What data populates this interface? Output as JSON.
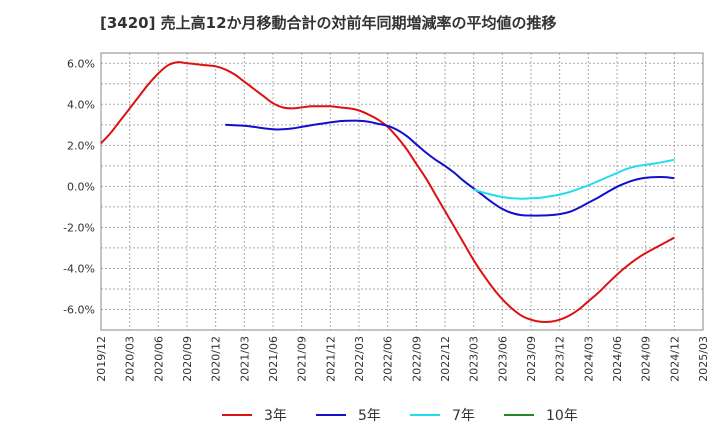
{
  "chart_data": {
    "type": "line",
    "title": "[3420]  売上高12か月移動合計の対前年同期増減率の平均値の推移",
    "xlabel": "",
    "ylabel": "",
    "x_ticks": [
      "2019/12",
      "2020/03",
      "2020/06",
      "2020/09",
      "2020/12",
      "2021/03",
      "2021/06",
      "2021/09",
      "2021/12",
      "2022/03",
      "2022/06",
      "2022/09",
      "2022/12",
      "2023/03",
      "2023/06",
      "2023/09",
      "2023/12",
      "2024/03",
      "2024/06",
      "2024/09",
      "2024/12",
      "2025/03"
    ],
    "y_ticks": [
      6,
      4,
      2,
      0,
      -2,
      -4,
      -6
    ],
    "y_tick_labels": [
      "6.0%",
      "4.0%",
      "2.0%",
      "0.0%",
      "-2.0%",
      "-4.0%",
      "-6.0%"
    ],
    "ylim": [
      -7,
      6.5
    ],
    "grid": true,
    "legend_position": "bottom",
    "series": [
      {
        "name": "3年",
        "color": "#dd1111",
        "x": [
          "2019/12",
          "2020/01",
          "2020/02",
          "2020/03",
          "2020/04",
          "2020/05",
          "2020/06",
          "2020/07",
          "2020/08",
          "2020/09",
          "2020/10",
          "2020/11",
          "2020/12",
          "2021/01",
          "2021/02",
          "2021/03",
          "2021/04",
          "2021/05",
          "2021/06",
          "2021/07",
          "2021/08",
          "2021/09",
          "2021/10",
          "2021/11",
          "2021/12",
          "2022/01",
          "2022/02",
          "2022/03",
          "2022/04",
          "2022/05",
          "2022/06",
          "2022/07",
          "2022/08",
          "2022/09",
          "2022/10",
          "2022/11",
          "2022/12",
          "2023/01",
          "2023/02",
          "2023/03",
          "2023/04",
          "2023/05",
          "2023/06",
          "2023/07",
          "2023/08",
          "2023/09",
          "2023/10",
          "2023/11",
          "2023/12",
          "2024/01",
          "2024/02",
          "2024/03",
          "2024/04",
          "2024/05",
          "2024/06",
          "2024/07",
          "2024/08",
          "2024/09",
          "2024/10",
          "2024/11",
          "2024/12"
        ],
        "values": [
          2.1,
          2.6,
          3.2,
          3.8,
          4.4,
          5.0,
          5.5,
          5.9,
          6.05,
          6.0,
          5.95,
          5.9,
          5.85,
          5.7,
          5.45,
          5.1,
          4.75,
          4.4,
          4.05,
          3.85,
          3.8,
          3.85,
          3.9,
          3.9,
          3.9,
          3.85,
          3.8,
          3.7,
          3.5,
          3.25,
          2.9,
          2.4,
          1.8,
          1.1,
          0.4,
          -0.4,
          -1.2,
          -2.0,
          -2.8,
          -3.6,
          -4.3,
          -4.95,
          -5.5,
          -5.95,
          -6.3,
          -6.5,
          -6.6,
          -6.6,
          -6.5,
          -6.3,
          -6.0,
          -5.6,
          -5.2,
          -4.75,
          -4.3,
          -3.9,
          -3.55,
          -3.25,
          -3.0,
          -2.75,
          -2.5
        ]
      },
      {
        "name": "5年",
        "color": "#1111cc",
        "x": [
          "2021/01",
          "2021/02",
          "2021/03",
          "2021/04",
          "2021/05",
          "2021/06",
          "2021/07",
          "2021/08",
          "2021/09",
          "2021/10",
          "2021/11",
          "2021/12",
          "2022/01",
          "2022/02",
          "2022/03",
          "2022/04",
          "2022/05",
          "2022/06",
          "2022/07",
          "2022/08",
          "2022/09",
          "2022/10",
          "2022/11",
          "2022/12",
          "2023/01",
          "2023/02",
          "2023/03",
          "2023/04",
          "2023/05",
          "2023/06",
          "2023/07",
          "2023/08",
          "2023/09",
          "2023/10",
          "2023/11",
          "2023/12",
          "2024/01",
          "2024/02",
          "2024/03",
          "2024/04",
          "2024/05",
          "2024/06",
          "2024/07",
          "2024/08",
          "2024/09",
          "2024/10",
          "2024/11",
          "2024/12"
        ],
        "values": [
          3.0,
          2.98,
          2.95,
          2.9,
          2.83,
          2.78,
          2.78,
          2.82,
          2.9,
          2.98,
          3.05,
          3.12,
          3.18,
          3.2,
          3.2,
          3.15,
          3.05,
          2.95,
          2.75,
          2.45,
          2.05,
          1.65,
          1.3,
          1.0,
          0.65,
          0.25,
          -0.1,
          -0.45,
          -0.8,
          -1.1,
          -1.3,
          -1.4,
          -1.42,
          -1.42,
          -1.4,
          -1.35,
          -1.25,
          -1.05,
          -0.8,
          -0.55,
          -0.28,
          -0.02,
          0.18,
          0.33,
          0.42,
          0.45,
          0.45,
          0.4
        ]
      },
      {
        "name": "7年",
        "color": "#22ddee",
        "x": [
          "2023/03",
          "2023/04",
          "2023/05",
          "2023/06",
          "2023/07",
          "2023/08",
          "2023/09",
          "2023/10",
          "2023/11",
          "2023/12",
          "2024/01",
          "2024/02",
          "2024/03",
          "2024/04",
          "2024/05",
          "2024/06",
          "2024/07",
          "2024/08",
          "2024/09",
          "2024/10",
          "2024/11",
          "2024/12"
        ],
        "values": [
          -0.15,
          -0.3,
          -0.42,
          -0.52,
          -0.58,
          -0.6,
          -0.58,
          -0.55,
          -0.48,
          -0.4,
          -0.28,
          -0.12,
          0.05,
          0.25,
          0.45,
          0.65,
          0.85,
          0.98,
          1.05,
          1.12,
          1.2,
          1.3
        ]
      },
      {
        "name": "10年",
        "color": "#228822",
        "x": [],
        "values": []
      }
    ]
  }
}
